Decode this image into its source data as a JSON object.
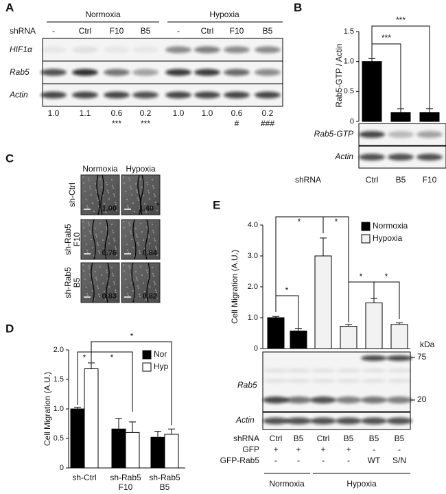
{
  "panel_labels": [
    "A",
    "B",
    "C",
    "D",
    "E"
  ],
  "panel_a": {
    "conditions": [
      "Normoxia",
      "Hypoxia"
    ],
    "row_label": "shRNA",
    "lanes": [
      "-",
      "Ctrl",
      "F10",
      "B5",
      "-",
      "Ctrl",
      "F10",
      "B5"
    ],
    "blots": [
      "HIF1α",
      "Rab5",
      "Actin"
    ],
    "quantification": [
      "1.0",
      "1.1",
      "0.6",
      "0.2",
      "1.0",
      "1.0",
      "0.6",
      "0.2"
    ],
    "significance": [
      null,
      null,
      "***",
      "***",
      null,
      null,
      "#",
      "###"
    ]
  },
  "panel_b": {
    "blots": [
      "Rab5-GTP",
      "Actin"
    ],
    "row_label": "shRNA"
  },
  "panel_c": {
    "columns": [
      "Normoxia",
      "Hypoxia"
    ],
    "rows": [
      [
        "sh-Ctrl"
      ],
      [
        "sh-Rab5",
        "F10"
      ],
      [
        "sh-Rab5",
        "B5"
      ]
    ],
    "values": [
      [
        "1.00",
        "1.40"
      ],
      [
        "0.76",
        "0.84"
      ],
      [
        "0.83",
        "0.82"
      ]
    ],
    "significance": [
      [
        null,
        "*"
      ],
      [
        null,
        null
      ],
      [
        null,
        null
      ]
    ]
  },
  "panel_e": {
    "blots": [
      "Rab5",
      "Actin"
    ],
    "marker_unit": "kDa",
    "markers": [
      75,
      20
    ],
    "row_labels": [
      "shRNA",
      "GFP",
      "GFP-Rab5"
    ],
    "gfp": [
      "+",
      "+",
      "+",
      "+",
      "-",
      "-"
    ],
    "gfp_rab5": [
      "-",
      "-",
      "-",
      "-",
      "WT",
      "S/N"
    ],
    "groups": [
      "Normoxia",
      "Hypoxia"
    ]
  },
  "chart_data": [
    {
      "type": "bar",
      "y_label": "Rab5-GTP / Actin",
      "categories": [
        "Ctrl",
        "B5",
        "F10"
      ],
      "values": [
        1.0,
        0.15,
        0.15
      ],
      "errors": [
        0.05,
        0.06,
        0.06
      ],
      "color": "#000000",
      "ylim": [
        0,
        1.5
      ],
      "yticks": [
        0,
        0.5,
        {
          "value": 1,
          "label": "1.0"
        },
        1.5
      ],
      "significance": [
        "***",
        "***"
      ]
    },
    {
      "type": "bar",
      "y_label": "Cell Migration (A.U.)",
      "categories": [
        [
          "sh-Ctrl"
        ],
        [
          "sh-Rab5",
          "F10"
        ],
        [
          "sh-Rab5",
          "B5"
        ]
      ],
      "series": [
        {
          "name": "Nor",
          "color": "#000000",
          "values": [
            1.0,
            0.66,
            0.52
          ],
          "errors": [
            0.03,
            0.18,
            0.1
          ]
        },
        {
          "name": "Hyp",
          "color": "#ffffff",
          "values": [
            1.68,
            0.6,
            0.57
          ],
          "errors": [
            0.1,
            0.18,
            0.09
          ]
        }
      ],
      "ylim": [
        0,
        2
      ],
      "yticks": [
        0,
        0.5,
        {
          "value": 1,
          "label": "1.0"
        },
        1.5,
        {
          "value": 2,
          "label": "2.0"
        }
      ],
      "significance": [
        "*",
        "*",
        "*"
      ]
    },
    {
      "type": "bar",
      "y_label": "Cell Migration (A.U.)",
      "categories": [
        "Ctrl",
        "B5",
        "Ctrl",
        "B5",
        "B5",
        "B5"
      ],
      "series": [
        {
          "name": "Normoxia",
          "color": "#000000",
          "values": [
            1.0,
            0.57,
            null,
            null,
            null,
            null
          ],
          "errors": [
            0.04,
            0.08,
            null,
            null,
            null,
            null
          ]
        },
        {
          "name": "Hypoxia",
          "color": "#f2f2f2",
          "values": [
            null,
            null,
            3.0,
            0.72,
            1.48,
            0.78
          ],
          "errors": [
            null,
            null,
            0.58,
            0.06,
            0.14,
            0.05
          ]
        }
      ],
      "ylim": [
        0,
        4
      ],
      "yticks": [
        0,
        {
          "value": 1,
          "label": "1.0"
        },
        {
          "value": 2,
          "label": "2.0"
        },
        {
          "value": 3,
          "label": "3.0"
        },
        {
          "value": 4,
          "label": "4.0"
        }
      ],
      "significance": [
        "*",
        "*",
        "*",
        "*",
        "*"
      ]
    }
  ]
}
